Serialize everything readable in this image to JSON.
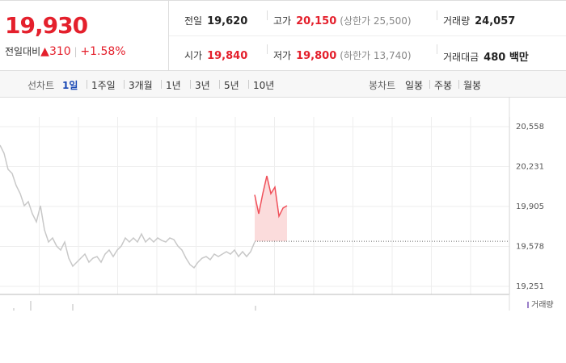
{
  "header": {
    "price": "19,930",
    "change_label": "전일대비",
    "change": "310",
    "change_pct": "+1.58%"
  },
  "stats": [
    [
      {
        "label": "전일",
        "value": "19,620",
        "color": "#222"
      },
      {
        "label": "고가",
        "value": "20,150",
        "note": "(상한가 25,500)",
        "color": "#e4202c"
      },
      {
        "label": "거래량",
        "value": "24,057",
        "color": "#222"
      }
    ],
    [
      {
        "label": "시가",
        "value": "19,840",
        "color": "#e4202c"
      },
      {
        "label": "저가",
        "value": "19,800",
        "note": "(하한가 13,740)",
        "color": "#e4202c"
      },
      {
        "label": "거래대금",
        "value": "480 백만",
        "color": "#222"
      }
    ]
  ],
  "tabs": {
    "line_label": "선차트",
    "line_options": [
      "1일",
      "1주일",
      "3개월",
      "1년",
      "3년",
      "5년",
      "10년"
    ],
    "candle_label": "봉차트",
    "candle_options": [
      "일봉",
      "주봉",
      "월봉"
    ]
  },
  "chart_data": {
    "type": "line",
    "ylim": [
      19185,
      20802
    ],
    "yticks": [
      {
        "value": 19251,
        "label": "19,251"
      },
      {
        "value": 19578,
        "label": "19,578"
      },
      {
        "value": 19905,
        "label": "19,905"
      },
      {
        "value": 20231,
        "label": "20,231"
      },
      {
        "value": 20558,
        "label": "20,558"
      }
    ],
    "baseline": 19620,
    "volume_label": "거래량",
    "series": [
      {
        "color": "#c8c8c8",
        "values": [
          20406,
          20340,
          20208,
          20175,
          20076,
          20010,
          19911,
          19944,
          19845,
          19779,
          19911,
          19713,
          19614,
          19647,
          19581,
          19548,
          19614,
          19482,
          19416,
          19449,
          19482,
          19515,
          19449,
          19482,
          19495,
          19449,
          19515,
          19548,
          19495,
          19548,
          19581,
          19647,
          19614,
          19647,
          19614,
          19680,
          19614,
          19647,
          19614,
          19647,
          19627,
          19614,
          19647,
          19634,
          19581,
          19548,
          19482,
          19429,
          19403,
          19449,
          19482,
          19495,
          19469,
          19515,
          19495,
          19515,
          19535,
          19515,
          19548,
          19495,
          19535,
          19495,
          19535,
          19614
        ]
      },
      {
        "color": "#f0505a",
        "fill": "#fbdcdc",
        "values": [
          null,
          null,
          null,
          null,
          null,
          null,
          null,
          null,
          null,
          null,
          null,
          null,
          null,
          null,
          null,
          null,
          null,
          null,
          null,
          null,
          null,
          null,
          null,
          null,
          null,
          null,
          null,
          null,
          null,
          null,
          null,
          null,
          null,
          null,
          null,
          null,
          null,
          null,
          null,
          null,
          null,
          null,
          null,
          null,
          null,
          null,
          null,
          null,
          null,
          null,
          null,
          null,
          null,
          null,
          null,
          null,
          null,
          null,
          null,
          null,
          null,
          null,
          null,
          20000,
          19845,
          20010,
          20155,
          20010,
          20063,
          19825,
          19892,
          19911
        ]
      }
    ]
  }
}
